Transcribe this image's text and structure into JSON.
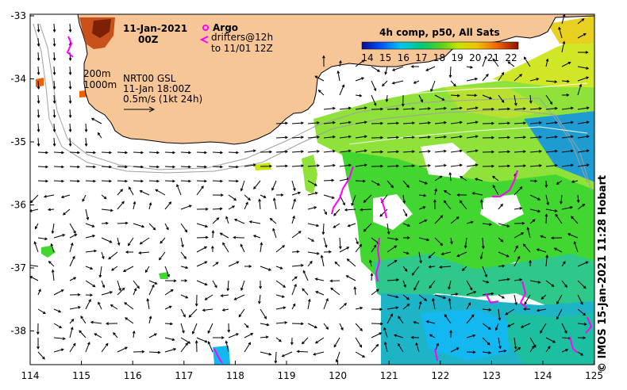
{
  "map": {
    "date": "11-Jan-2021",
    "time": "00Z",
    "argo_label": "Argo",
    "drifters_line1": "drifters@12h",
    "drifters_line2": "to 11/01 12Z",
    "contour_200": "200m",
    "contour_1000": "1000m",
    "nrt_line1": "NRT00 GSL",
    "nrt_line2": "11-Jan 18:00Z",
    "nrt_line3": "0.5m/s (1kt 24h)",
    "colorbar_title": "4h comp, p50, All Sats",
    "colorbar_ticks": [
      "14",
      "15",
      "16",
      "17",
      "18",
      "19",
      "20",
      "21",
      "22"
    ],
    "credit": "© IMOS 15-Jan-2021 11:28 Hobart",
    "x_ticks": [
      "114",
      "115",
      "116",
      "117",
      "118",
      "119",
      "120",
      "121",
      "122",
      "123",
      "124",
      "125"
    ],
    "y_ticks": [
      "-33",
      "-34",
      "-35",
      "-36",
      "-37",
      "-38"
    ],
    "colors": {
      "land": "#f7c697",
      "argo": "#ff00ff",
      "drifter": "#ff00ff"
    }
  }
}
